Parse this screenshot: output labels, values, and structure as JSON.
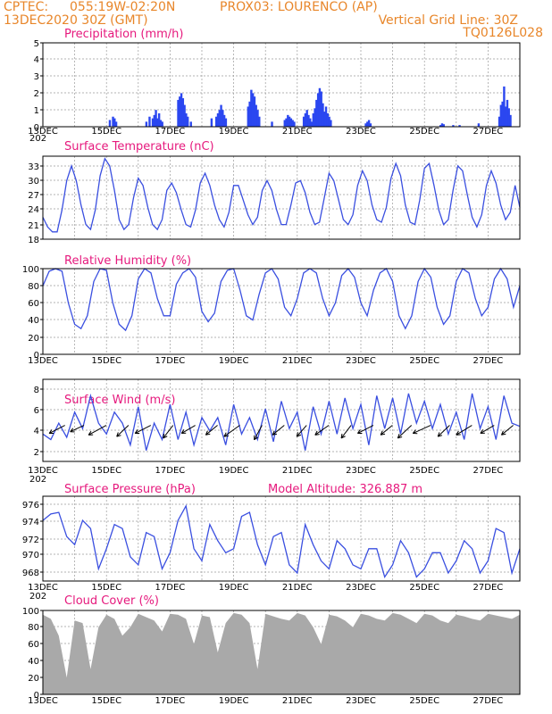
{
  "header": {
    "source": "CPTEC:",
    "coords": "055:19W-02:20N",
    "location": "PROX03: LOURENCO (AP)",
    "datetime": "13DEC2020 30Z (GMT)",
    "grid_line": "Vertical Grid Line: 30Z",
    "code": "TQ0126L028",
    "altitude": "Model Altitude: 326.887 m"
  },
  "colors": {
    "header": "#e8862a",
    "title": "#e6197d",
    "series": "#3a4fe0",
    "bars": "#2b47f0",
    "cloud": "#a9a9a9"
  },
  "x_labels": [
    "13DEC",
    "15DEC",
    "17DEC",
    "19DEC",
    "21DEC",
    "23DEC",
    "25DEC",
    "27DEC"
  ],
  "cut_label": "202",
  "chart_data": [
    {
      "type": "bar",
      "title": "Precipitation (mm/h)",
      "x_unit": "day offset from 13DEC 00Z",
      "ylim": [
        0,
        5
      ],
      "yticks": [
        0,
        1,
        2,
        3,
        4,
        5
      ],
      "x": [
        2.1,
        2.2,
        2.25,
        2.3,
        3.25,
        3.35,
        3.45,
        3.5,
        3.55,
        3.6,
        3.65,
        3.7,
        3.75,
        4.25,
        4.3,
        4.35,
        4.4,
        4.45,
        4.5,
        4.55,
        4.65,
        5.3,
        5.45,
        5.5,
        5.55,
        5.6,
        5.65,
        5.7,
        5.75,
        6.45,
        6.5,
        6.55,
        6.6,
        6.65,
        6.7,
        6.75,
        6.8,
        7.2,
        7.6,
        7.65,
        7.7,
        7.75,
        7.8,
        7.85,
        7.9,
        8.2,
        8.25,
        8.3,
        8.35,
        8.4,
        8.45,
        8.5,
        8.55,
        8.6,
        8.65,
        8.7,
        8.75,
        8.8,
        8.85,
        8.9,
        8.95,
        9.0,
        9.05,
        10.15,
        10.2,
        10.25,
        10.3,
        12.5,
        12.55,
        12.6,
        12.9,
        13.1,
        13.7,
        14.35,
        14.4,
        14.45,
        14.5,
        14.55,
        14.6,
        14.65,
        14.7
      ],
      "values": [
        0.4,
        0.6,
        0.5,
        0.3,
        0.3,
        0.6,
        0.5,
        0.7,
        1.0,
        0.5,
        0.8,
        0.4,
        0.3,
        1.6,
        1.8,
        2.0,
        1.7,
        1.3,
        0.8,
        0.6,
        0.3,
        0.5,
        0.6,
        0.8,
        1.0,
        1.3,
        1.0,
        0.7,
        0.5,
        1.2,
        1.5,
        2.2,
        2.0,
        1.8,
        1.3,
        1.0,
        0.6,
        0.3,
        0.4,
        0.5,
        0.7,
        0.6,
        0.5,
        0.4,
        0.3,
        0.6,
        0.8,
        1.0,
        0.7,
        0.5,
        0.3,
        0.8,
        1.1,
        1.6,
        2.0,
        2.3,
        2.1,
        1.4,
        0.9,
        1.2,
        0.8,
        0.6,
        0.4,
        0.2,
        0.3,
        0.4,
        0.2,
        0.1,
        0.2,
        0.15,
        0.1,
        0.1,
        0.2,
        0.6,
        1.3,
        1.5,
        2.4,
        1.2,
        1.6,
        1.1,
        0.7
      ]
    },
    {
      "type": "line",
      "title": "Surface Temperature (nC)",
      "x_unit": "day offset from 13DEC 00Z",
      "ylim": [
        18,
        35
      ],
      "yticks": [
        18,
        21,
        24,
        27,
        30,
        33
      ],
      "x": [
        0.0,
        0.15,
        0.3,
        0.45,
        0.6,
        0.75,
        0.9,
        1.05,
        1.2,
        1.35,
        1.5,
        1.65,
        1.8,
        1.95,
        2.1,
        2.25,
        2.4,
        2.55,
        2.7,
        2.85,
        3.0,
        3.15,
        3.3,
        3.45,
        3.6,
        3.75,
        3.9,
        4.05,
        4.2,
        4.35,
        4.5,
        4.65,
        4.8,
        4.95,
        5.1,
        5.25,
        5.4,
        5.55,
        5.7,
        5.85,
        6.0,
        6.15,
        6.3,
        6.45,
        6.6,
        6.75,
        6.9,
        7.05,
        7.2,
        7.35,
        7.5,
        7.65,
        7.8,
        7.95,
        8.1,
        8.25,
        8.4,
        8.55,
        8.7,
        8.85,
        9.0,
        9.15,
        9.3,
        9.45,
        9.6,
        9.75,
        9.9,
        10.05,
        10.2,
        10.35,
        10.5,
        10.65,
        10.8,
        10.95,
        11.1,
        11.25,
        11.4,
        11.55,
        11.7,
        11.85,
        12.0,
        12.15,
        12.3,
        12.45,
        12.6,
        12.75,
        12.9,
        13.05,
        13.2,
        13.35,
        13.5,
        13.65,
        13.8,
        13.95,
        14.1,
        14.25,
        14.4,
        14.55,
        14.7,
        14.85,
        15.0
      ],
      "values": [
        22.5,
        20.5,
        19.5,
        19.5,
        24.0,
        30.0,
        33.0,
        30.0,
        25.0,
        21.0,
        20.0,
        24.0,
        31.0,
        34.5,
        33.0,
        28.0,
        22.0,
        20.0,
        21.0,
        26.5,
        30.5,
        29.0,
        24.5,
        21.0,
        20.0,
        22.0,
        28.0,
        29.5,
        27.5,
        24.0,
        21.0,
        20.5,
        24.0,
        29.5,
        31.5,
        29.0,
        25.0,
        22.0,
        20.5,
        23.5,
        29.0,
        29.0,
        26.0,
        23.0,
        21.0,
        22.5,
        28.0,
        30.0,
        28.0,
        24.0,
        21.0,
        21.0,
        25.0,
        29.5,
        30.0,
        27.5,
        23.5,
        21.0,
        21.5,
        26.5,
        31.5,
        30.0,
        26.0,
        22.0,
        21.0,
        23.0,
        29.0,
        32.0,
        30.0,
        25.0,
        22.0,
        21.5,
        24.5,
        30.5,
        33.5,
        31.0,
        25.0,
        21.5,
        21.0,
        26.0,
        32.5,
        33.5,
        29.0,
        24.0,
        21.0,
        22.0,
        28.0,
        33.0,
        32.0,
        27.0,
        22.5,
        20.5,
        23.0,
        29.0,
        32.0,
        29.5,
        25.0,
        22.0,
        23.5,
        29.0,
        24.5
      ]
    },
    {
      "type": "line",
      "title": "Relative Humidity (%)",
      "x_unit": "day offset from 13DEC 00Z",
      "ylim": [
        0,
        100
      ],
      "yticks": [
        0,
        20,
        40,
        60,
        80,
        100
      ],
      "x": [
        0.0,
        0.2,
        0.4,
        0.6,
        0.8,
        1.0,
        1.2,
        1.4,
        1.6,
        1.8,
        2.0,
        2.2,
        2.4,
        2.6,
        2.8,
        3.0,
        3.2,
        3.4,
        3.6,
        3.8,
        4.0,
        4.2,
        4.4,
        4.6,
        4.8,
        5.0,
        5.2,
        5.4,
        5.6,
        5.8,
        6.0,
        6.2,
        6.4,
        6.6,
        6.8,
        7.0,
        7.2,
        7.4,
        7.6,
        7.8,
        8.0,
        8.2,
        8.4,
        8.6,
        8.8,
        9.0,
        9.2,
        9.4,
        9.6,
        9.8,
        10.0,
        10.2,
        10.4,
        10.6,
        10.8,
        11.0,
        11.2,
        11.4,
        11.6,
        11.8,
        12.0,
        12.2,
        12.4,
        12.6,
        12.8,
        13.0,
        13.2,
        13.4,
        13.6,
        13.8,
        14.0,
        14.2,
        14.4,
        14.6,
        14.8,
        15.0
      ],
      "values": [
        80,
        97,
        100,
        97,
        60,
        35,
        30,
        45,
        85,
        100,
        98,
        60,
        35,
        28,
        45,
        88,
        100,
        95,
        65,
        45,
        45,
        82,
        95,
        100,
        90,
        50,
        38,
        48,
        85,
        98,
        100,
        75,
        45,
        40,
        70,
        95,
        100,
        88,
        55,
        45,
        65,
        95,
        100,
        95,
        65,
        45,
        60,
        92,
        100,
        90,
        60,
        45,
        75,
        95,
        100,
        85,
        45,
        30,
        45,
        85,
        100,
        90,
        55,
        35,
        45,
        85,
        100,
        95,
        65,
        45,
        55,
        88,
        100,
        88,
        55,
        80
      ]
    },
    {
      "type": "line",
      "title": "Surface Wind (m/s)",
      "x_unit": "day offset from 13DEC 00Z",
      "ylim": [
        1,
        8.5
      ],
      "yticks": [
        2,
        4,
        6,
        8
      ],
      "x": [
        0.0,
        0.25,
        0.5,
        0.75,
        1.0,
        1.25,
        1.5,
        1.75,
        2.0,
        2.25,
        2.5,
        2.75,
        3.0,
        3.25,
        3.5,
        3.75,
        4.0,
        4.25,
        4.5,
        4.75,
        5.0,
        5.25,
        5.5,
        5.75,
        6.0,
        6.25,
        6.5,
        6.75,
        7.0,
        7.25,
        7.5,
        7.75,
        8.0,
        8.25,
        8.5,
        8.75,
        9.0,
        9.25,
        9.5,
        9.75,
        10.0,
        10.25,
        10.5,
        10.75,
        11.0,
        11.25,
        11.5,
        11.75,
        12.0,
        12.25,
        12.5,
        12.75,
        13.0,
        13.25,
        13.5,
        13.75,
        14.0,
        14.25,
        14.5,
        14.75,
        15.0
      ],
      "values": [
        3.5,
        3.0,
        4.5,
        3.2,
        5.5,
        4.0,
        7.0,
        4.5,
        3.5,
        5.5,
        4.5,
        2.5,
        6.0,
        2.0,
        4.5,
        3.0,
        6.2,
        3.0,
        5.5,
        2.5,
        5.0,
        3.8,
        5.0,
        2.5,
        6.2,
        3.5,
        5.0,
        3.0,
        5.8,
        2.8,
        6.5,
        4.0,
        5.5,
        2.0,
        6.0,
        3.5,
        6.5,
        3.5,
        6.8,
        4.0,
        6.2,
        2.5,
        7.0,
        4.0,
        6.8,
        3.5,
        7.2,
        4.5,
        6.5,
        4.0,
        6.2,
        3.5,
        5.5,
        3.0,
        7.2,
        4.0,
        6.0,
        3.0,
        7.0,
        4.5,
        4.2
      ],
      "arrow_days": [
        0.3,
        0.9,
        1.6,
        2.3,
        3.0,
        3.7,
        4.4,
        5.1,
        5.8,
        6.5,
        7.2,
        7.9,
        8.6,
        9.3,
        10.0,
        10.6,
        11.2,
        11.8,
        12.4,
        13.1,
        13.8,
        14.4
      ],
      "arrow_dx": [
        -0.8,
        -0.7,
        -0.9,
        -0.6,
        -0.8,
        -0.5,
        -0.7,
        -0.6,
        -0.8,
        -0.4,
        -0.6,
        -0.5,
        -0.7,
        -0.5,
        -0.8,
        -0.6,
        -0.7,
        -0.9,
        -0.6,
        -0.8,
        -0.7,
        -0.6
      ],
      "arrow_dy": [
        -0.5,
        -0.4,
        -0.6,
        -0.7,
        -0.5,
        -0.8,
        -0.5,
        -0.6,
        -0.7,
        -0.9,
        -0.6,
        -0.7,
        -0.6,
        -0.8,
        -0.5,
        -0.6,
        -0.8,
        -0.5,
        -0.7,
        -0.6,
        -0.5,
        -0.6
      ]
    },
    {
      "type": "line",
      "title": "Surface Pressure (hPa)",
      "x_unit": "day offset from 13DEC 00Z",
      "ylim": [
        967,
        977.5
      ],
      "yticks": [
        968,
        970,
        972,
        974,
        976
      ],
      "x": [
        0.0,
        0.25,
        0.5,
        0.75,
        1.0,
        1.25,
        1.5,
        1.75,
        2.0,
        2.25,
        2.5,
        2.75,
        3.0,
        3.25,
        3.5,
        3.75,
        4.0,
        4.25,
        4.5,
        4.75,
        5.0,
        5.25,
        5.5,
        5.75,
        6.0,
        6.25,
        6.5,
        6.75,
        7.0,
        7.25,
        7.5,
        7.75,
        8.0,
        8.25,
        8.5,
        8.75,
        9.0,
        9.25,
        9.5,
        9.75,
        10.0,
        10.25,
        10.5,
        10.75,
        11.0,
        11.25,
        11.5,
        11.75,
        12.0,
        12.25,
        12.5,
        12.75,
        13.0,
        13.25,
        13.5,
        13.75,
        14.0,
        14.25,
        14.5,
        14.75,
        15.0
      ],
      "values": [
        974.5,
        975.3,
        975.5,
        972.5,
        971.5,
        974.5,
        973.5,
        968.5,
        971.0,
        974.0,
        973.5,
        970.0,
        969.0,
        973.0,
        972.5,
        968.5,
        970.5,
        974.5,
        976.3,
        971.0,
        969.5,
        974.0,
        972.0,
        970.5,
        971.0,
        975.0,
        975.5,
        971.5,
        969.0,
        972.5,
        973.0,
        969.0,
        968.0,
        974.0,
        971.5,
        969.5,
        968.5,
        972.0,
        971.0,
        969.0,
        968.5,
        971.0,
        971.0,
        967.5,
        969.0,
        972.0,
        970.5,
        967.5,
        968.5,
        970.5,
        970.5,
        968.0,
        969.5,
        972.0,
        971.0,
        968.0,
        969.5,
        973.5,
        973.0,
        968.0,
        971.0
      ]
    },
    {
      "type": "area",
      "title": "Cloud Cover (%)",
      "x_unit": "day offset from 13DEC 00Z",
      "ylim": [
        0,
        100
      ],
      "yticks": [
        0,
        20,
        40,
        60,
        80,
        100
      ],
      "x": [
        0.0,
        0.25,
        0.5,
        0.75,
        1.0,
        1.25,
        1.5,
        1.75,
        2.0,
        2.25,
        2.5,
        2.75,
        3.0,
        3.25,
        3.5,
        3.75,
        4.0,
        4.25,
        4.5,
        4.75,
        5.0,
        5.25,
        5.5,
        5.75,
        6.0,
        6.25,
        6.5,
        6.75,
        7.0,
        7.25,
        7.5,
        7.75,
        8.0,
        8.25,
        8.5,
        8.75,
        9.0,
        9.25,
        9.5,
        9.75,
        10.0,
        10.25,
        10.5,
        10.75,
        11.0,
        11.25,
        11.5,
        11.75,
        12.0,
        12.25,
        12.5,
        12.75,
        13.0,
        13.25,
        13.5,
        13.75,
        14.0,
        14.25,
        14.5,
        14.75,
        15.0
      ],
      "values": [
        95,
        90,
        70,
        20,
        88,
        85,
        30,
        80,
        95,
        90,
        70,
        80,
        96,
        92,
        88,
        75,
        96,
        95,
        90,
        60,
        94,
        92,
        50,
        85,
        97,
        95,
        85,
        30,
        96,
        93,
        90,
        88,
        97,
        94,
        80,
        60,
        95,
        93,
        88,
        80,
        96,
        94,
        90,
        88,
        97,
        95,
        90,
        85,
        96,
        94,
        88,
        85,
        95,
        93,
        90,
        88,
        96,
        94,
        92,
        90,
        95
      ]
    }
  ],
  "panels": [
    {
      "title": "Precipitation (mm/h)",
      "ylabels": [
        "0",
        "1",
        "2",
        "3",
        "4",
        "5"
      ]
    },
    {
      "title": "Surface Temperature (nC)",
      "ylabels": [
        "18",
        "21",
        "24",
        "27",
        "30",
        "33"
      ]
    },
    {
      "title": "Relative Humidity (%)",
      "ylabels": [
        "0",
        "20",
        "40",
        "60",
        "80",
        "100"
      ]
    },
    {
      "title": "Surface Wind (m/s)",
      "ylabels": [
        "2",
        "4",
        "6",
        "8"
      ]
    },
    {
      "title": "Surface Pressure (hPa)",
      "ylabels": [
        "968",
        "970",
        "972",
        "974",
        "976"
      ]
    },
    {
      "title": "Cloud Cover (%)",
      "ylabels": [
        "0",
        "20",
        "40",
        "60",
        "80",
        "100"
      ]
    }
  ]
}
